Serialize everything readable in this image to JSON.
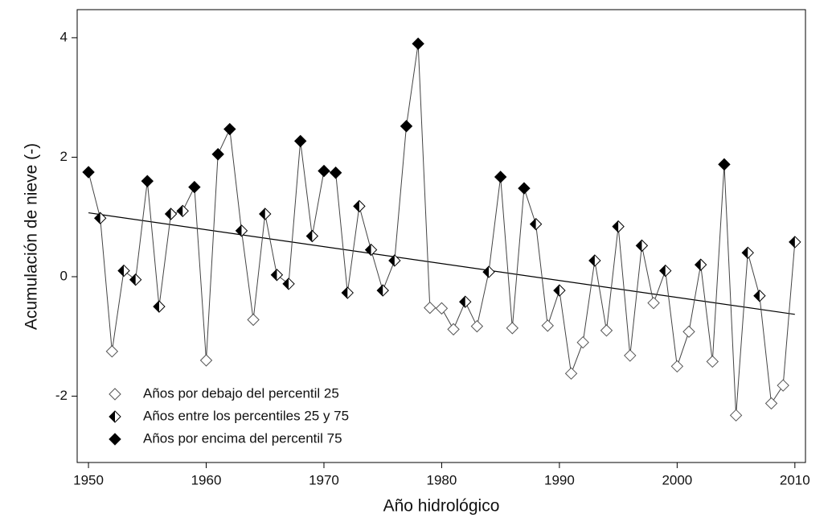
{
  "chart_data": {
    "type": "line",
    "x_label": "Año hidrológico",
    "y_label": "Acumulación de nieve (-)",
    "x": [
      1950,
      1951,
      1952,
      1953,
      1954,
      1955,
      1956,
      1957,
      1958,
      1959,
      1960,
      1961,
      1962,
      1963,
      1964,
      1965,
      1966,
      1967,
      1968,
      1969,
      1970,
      1971,
      1972,
      1973,
      1974,
      1975,
      1976,
      1977,
      1978,
      1979,
      1980,
      1981,
      1982,
      1983,
      1984,
      1985,
      1986,
      1987,
      1988,
      1989,
      1990,
      1991,
      1992,
      1993,
      1994,
      1995,
      1996,
      1997,
      1998,
      1999,
      2000,
      2001,
      2002,
      2003,
      2004,
      2005,
      2006,
      2007,
      2008,
      2009,
      2010
    ],
    "values": [
      1.75,
      0.98,
      -1.25,
      0.1,
      -0.05,
      1.6,
      -0.5,
      1.05,
      1.1,
      1.5,
      -1.4,
      2.05,
      2.47,
      0.77,
      -0.72,
      1.05,
      0.03,
      -0.12,
      2.27,
      0.68,
      1.77,
      1.74,
      -0.27,
      1.18,
      0.45,
      -0.23,
      0.27,
      2.52,
      3.9,
      -0.52,
      -0.53,
      -0.88,
      -0.42,
      -0.83,
      0.08,
      1.67,
      -0.86,
      1.48,
      0.88,
      -0.82,
      -0.23,
      -1.62,
      -1.1,
      0.27,
      -0.9,
      0.84,
      -1.32,
      0.52,
      -0.44,
      0.1,
      -1.5,
      -0.92,
      0.2,
      -1.42,
      1.88,
      -2.32,
      0.4,
      -0.32,
      -2.12,
      -1.82,
      0.58
    ],
    "marker_class": [
      2,
      1,
      0,
      1,
      1,
      2,
      1,
      1,
      1,
      2,
      0,
      2,
      2,
      1,
      0,
      1,
      1,
      1,
      2,
      1,
      2,
      2,
      1,
      1,
      1,
      1,
      1,
      2,
      2,
      0,
      0,
      0,
      1,
      0,
      1,
      2,
      0,
      2,
      1,
      0,
      1,
      0,
      0,
      1,
      0,
      1,
      0,
      1,
      0,
      1,
      0,
      0,
      1,
      0,
      2,
      0,
      1,
      1,
      0,
      0,
      1
    ],
    "legend": [
      {
        "name": "Años por debajo del percentil 25",
        "marker": "open"
      },
      {
        "name": "Años entre los percentiles 25 y 75",
        "marker": "half"
      },
      {
        "name": "Años por encima del percentil 75",
        "marker": "filled"
      }
    ],
    "trend": {
      "x": [
        1950,
        2010
      ],
      "values": [
        1.07,
        -0.63
      ]
    },
    "color": "#000000",
    "xlim": [
      1949.04,
      2010.9
    ],
    "ylim": [
      -3.11,
      4.47
    ],
    "xticks": [
      1950,
      1960,
      1970,
      1980,
      1990,
      2000,
      2010
    ],
    "yticks": [
      -2,
      0,
      2,
      4
    ],
    "legend_position": "lower left"
  }
}
